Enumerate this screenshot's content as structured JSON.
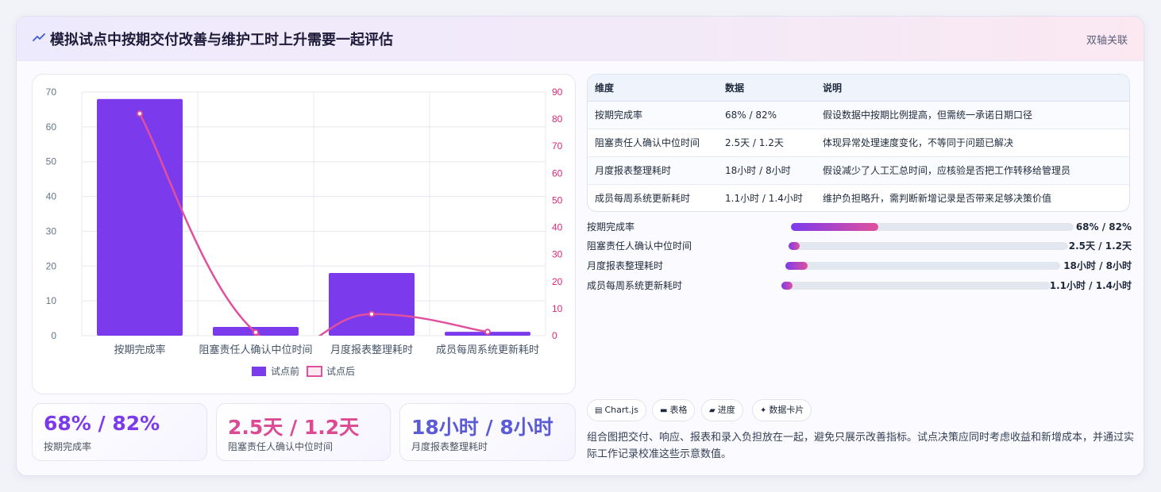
{
  "header": {
    "title": "模拟试点中按期交付改善与维护工时上升需要一起评估",
    "badge": "双轴关联",
    "icon": "sparkline-icon"
  },
  "chart_data": {
    "type": "bar",
    "categories": [
      "按期完成率",
      "阻塞责任人确认中位时间",
      "月度报表整理耗时",
      "成员每周系统更新耗时"
    ],
    "series": [
      {
        "name": "试点前",
        "type": "bar",
        "axis": "left",
        "color": "#7c3aed",
        "values": [
          68,
          2.5,
          18,
          1.1
        ]
      },
      {
        "name": "试点后",
        "type": "line",
        "axis": "right",
        "color": "#e0509c",
        "values": [
          82,
          1.2,
          8,
          1.4
        ]
      }
    ],
    "y_left": {
      "min": 0,
      "max": 70,
      "ticks": [
        0,
        10,
        20,
        30,
        40,
        50,
        60,
        70
      ]
    },
    "y_right": {
      "min": 0,
      "max": 90,
      "ticks": [
        0,
        10,
        20,
        30,
        40,
        50,
        60,
        70,
        80,
        90
      ]
    },
    "grid": true,
    "legend": "bottom"
  },
  "stats": [
    {
      "value": "68% / 82%",
      "label": "按期完成率",
      "color": "#7c3aed"
    },
    {
      "value": "2.5天 / 1.2天",
      "label": "阻塞责任人确认中位时间",
      "color": "#db4a93"
    },
    {
      "value": "18小时 / 8小时",
      "label": "月度报表整理耗时",
      "color": "#5b5bd6"
    }
  ],
  "table": {
    "headers": [
      "维度",
      "数据",
      "说明"
    ],
    "rows": [
      [
        "按期完成率",
        "68% / 82%",
        "假设数据中按期比例提高，但需统一承诺日期口径"
      ],
      [
        "阻塞责任人确认中位时间",
        "2.5天 / 1.2天",
        "体现异常处理速度变化，不等同于问题已解决"
      ],
      [
        "月度报表整理耗时",
        "18小时 / 8小时",
        "假设减少了人工汇总时间，应核验是否把工作转移给管理员"
      ],
      [
        "成员每周系统更新耗时",
        "1.1小时 / 1.4小时",
        "维护负担略升，需判断新增记录是否带来足够决策价值"
      ]
    ]
  },
  "progress": [
    {
      "label": "按期完成率",
      "value": "68% / 82%",
      "fraction": 0.31
    },
    {
      "label": "阻塞责任人确认中位时间",
      "value": "2.5天 / 1.2天",
      "fraction": 0.04
    },
    {
      "label": "月度报表整理耗时",
      "value": "18小时 / 8小时",
      "fraction": 0.08
    },
    {
      "label": "成员每周系统更新耗时",
      "value": "1.1小时 / 1.4小时",
      "fraction": 0.04
    }
  ],
  "chips": [
    {
      "icon": "chart-icon",
      "glyph": "▤",
      "label": "Chart.js"
    },
    {
      "icon": "table-icon",
      "glyph": "▬",
      "label": "表格"
    },
    {
      "icon": "progress-icon",
      "glyph": "▰",
      "label": "进度"
    },
    {
      "icon": "sparkle-icon",
      "glyph": "✦",
      "label": "数据卡片"
    }
  ],
  "description": "组合图把交付、响应、报表和录入负担放在一起，避免只展示改善指标。试点决策应同时考虑收益和新增成本，并通过实际工作记录校准这些示意数值。"
}
